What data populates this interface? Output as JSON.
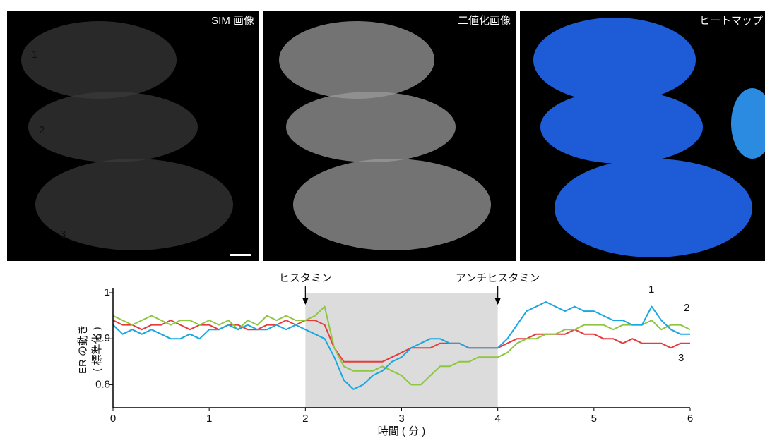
{
  "panels": [
    {
      "title": "SIM 画像"
    },
    {
      "title": "二値化画像"
    },
    {
      "title": "ヒートマップ"
    }
  ],
  "chart_data": {
    "type": "line",
    "y_label_lines": [
      "ER の動き",
      "( 標準化 )"
    ],
    "x_label": "時間 ( 分 )",
    "xlim": [
      0,
      6
    ],
    "xticks": [
      0,
      1,
      2,
      3,
      4,
      5,
      6
    ],
    "ylim": [
      0.75,
      1.0
    ],
    "yticks": [
      0.8,
      0.9,
      1
    ],
    "shade": [
      2,
      4
    ],
    "annotations": [
      {
        "text": "ヒスタミン",
        "x": 2
      },
      {
        "text": "アンチヒスタミン",
        "x": 4
      }
    ],
    "x": [
      0,
      0.1,
      0.2,
      0.3,
      0.4,
      0.5,
      0.6,
      0.7,
      0.8,
      0.9,
      1,
      1.1,
      1.2,
      1.3,
      1.4,
      1.5,
      1.6,
      1.7,
      1.8,
      1.9,
      2,
      2.1,
      2.2,
      2.3,
      2.4,
      2.5,
      2.6,
      2.7,
      2.8,
      2.9,
      3,
      3.1,
      3.2,
      3.3,
      3.4,
      3.5,
      3.6,
      3.7,
      3.8,
      3.9,
      4,
      4.1,
      4.2,
      4.3,
      4.4,
      4.5,
      4.6,
      4.7,
      4.8,
      4.9,
      5,
      5.1,
      5.2,
      5.3,
      5.4,
      5.5,
      5.6,
      5.7,
      5.8,
      5.9,
      6
    ],
    "series": [
      {
        "name": "3",
        "color": "#e8393b",
        "values": [
          0.94,
          0.93,
          0.93,
          0.92,
          0.93,
          0.93,
          0.94,
          0.93,
          0.92,
          0.93,
          0.93,
          0.92,
          0.93,
          0.93,
          0.92,
          0.92,
          0.93,
          0.93,
          0.94,
          0.93,
          0.94,
          0.94,
          0.93,
          0.88,
          0.85,
          0.85,
          0.85,
          0.85,
          0.85,
          0.86,
          0.87,
          0.88,
          0.88,
          0.88,
          0.89,
          0.89,
          0.89,
          0.88,
          0.88,
          0.88,
          0.88,
          0.89,
          0.9,
          0.9,
          0.91,
          0.91,
          0.91,
          0.91,
          0.92,
          0.91,
          0.91,
          0.9,
          0.9,
          0.89,
          0.9,
          0.89,
          0.89,
          0.89,
          0.88,
          0.89,
          0.89
        ]
      },
      {
        "name": "2",
        "color": "#8dc63f",
        "values": [
          0.95,
          0.94,
          0.93,
          0.94,
          0.95,
          0.94,
          0.93,
          0.94,
          0.94,
          0.93,
          0.94,
          0.93,
          0.94,
          0.92,
          0.94,
          0.93,
          0.95,
          0.94,
          0.95,
          0.94,
          0.94,
          0.95,
          0.97,
          0.88,
          0.84,
          0.83,
          0.83,
          0.83,
          0.84,
          0.83,
          0.82,
          0.8,
          0.8,
          0.82,
          0.84,
          0.84,
          0.85,
          0.85,
          0.86,
          0.86,
          0.86,
          0.87,
          0.89,
          0.9,
          0.9,
          0.91,
          0.91,
          0.92,
          0.92,
          0.93,
          0.93,
          0.93,
          0.92,
          0.93,
          0.93,
          0.93,
          0.94,
          0.92,
          0.93,
          0.93,
          0.92
        ]
      },
      {
        "name": "1",
        "color": "#1aa7e0",
        "values": [
          0.93,
          0.91,
          0.92,
          0.91,
          0.92,
          0.91,
          0.9,
          0.9,
          0.91,
          0.9,
          0.92,
          0.92,
          0.93,
          0.92,
          0.93,
          0.92,
          0.92,
          0.93,
          0.92,
          0.93,
          0.92,
          0.91,
          0.9,
          0.86,
          0.81,
          0.79,
          0.8,
          0.82,
          0.83,
          0.85,
          0.86,
          0.88,
          0.89,
          0.9,
          0.9,
          0.89,
          0.89,
          0.88,
          0.88,
          0.88,
          0.88,
          0.9,
          0.93,
          0.96,
          0.97,
          0.98,
          0.97,
          0.96,
          0.97,
          0.96,
          0.96,
          0.95,
          0.94,
          0.94,
          0.93,
          0.93,
          0.97,
          0.94,
          0.92,
          0.91,
          0.91
        ]
      }
    ]
  }
}
